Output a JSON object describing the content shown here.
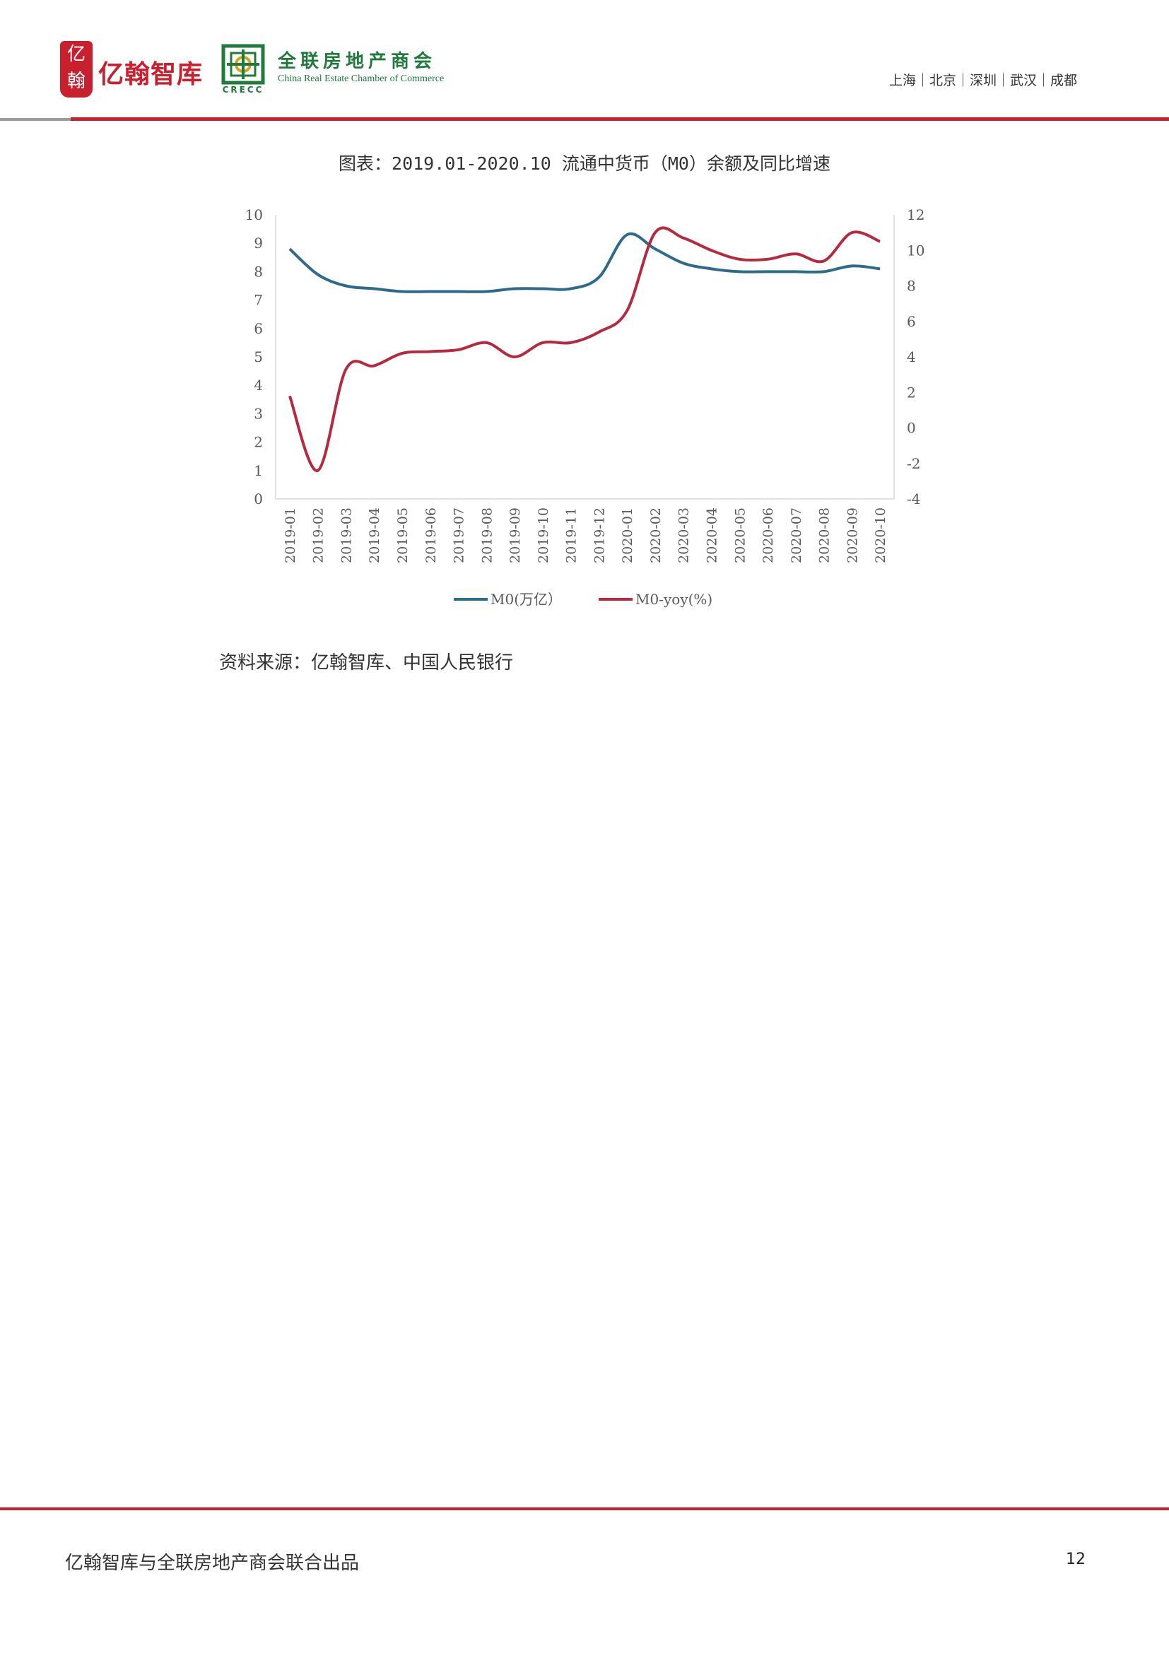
{
  "header": {
    "logo_yihan": {
      "seal_text": "亿翰",
      "brand_text": "亿翰智库"
    },
    "logo_crecc": {
      "acronym": "CRECC",
      "cn_name": "全联房地产商会",
      "en_name": "China Real Estate Chamber of Commerce"
    },
    "cities": "上海｜北京｜深圳｜武汉｜成都",
    "accent_color": "#c8202f",
    "green_color": "#1f7a3b"
  },
  "figure": {
    "caption": "图表：2019.01-2020.10 流通中货币（M0）余额及同比增速",
    "source": "资料来源：亿翰智库、中国人民银行"
  },
  "chart_data": {
    "type": "line",
    "categories": [
      "2019-01",
      "2019-02",
      "2019-03",
      "2019-04",
      "2019-05",
      "2019-06",
      "2019-07",
      "2019-08",
      "2019-09",
      "2019-10",
      "2019-11",
      "2019-12",
      "2020-01",
      "2020-02",
      "2020-03",
      "2020-04",
      "2020-05",
      "2020-06",
      "2020-07",
      "2020-08",
      "2020-09",
      "2020-10"
    ],
    "series": [
      {
        "name": "M0(万亿）",
        "axis": "left",
        "color": "#2e6b8a",
        "values": [
          8.8,
          7.9,
          7.5,
          7.4,
          7.3,
          7.3,
          7.3,
          7.3,
          7.4,
          7.4,
          7.4,
          7.8,
          9.3,
          8.8,
          8.3,
          8.1,
          8.0,
          8.0,
          8.0,
          8.0,
          8.2,
          8.1
        ]
      },
      {
        "name": "M0-yoy(%)",
        "axis": "right",
        "color": "#b52a3f",
        "values": [
          1.8,
          -2.4,
          3.3,
          3.5,
          4.2,
          4.3,
          4.4,
          4.8,
          4.0,
          4.8,
          4.8,
          5.4,
          6.6,
          11.0,
          10.7,
          10.0,
          9.5,
          9.5,
          9.8,
          9.4,
          11.0,
          10.5
        ]
      }
    ],
    "y_left": {
      "min": 0,
      "max": 10,
      "ticks": [
        "0",
        "1",
        "2",
        "3",
        "4",
        "5",
        "6",
        "7",
        "8",
        "9",
        "10"
      ]
    },
    "y_right": {
      "min": -4,
      "max": 12,
      "ticks": [
        "-4",
        "-2",
        "0",
        "2",
        "4",
        "6",
        "8",
        "10",
        "12"
      ]
    },
    "legend_position": "bottom",
    "grid": false
  },
  "footer": {
    "text": "亿翰智库与全联房地产商会联合出品",
    "page_number": "12"
  }
}
